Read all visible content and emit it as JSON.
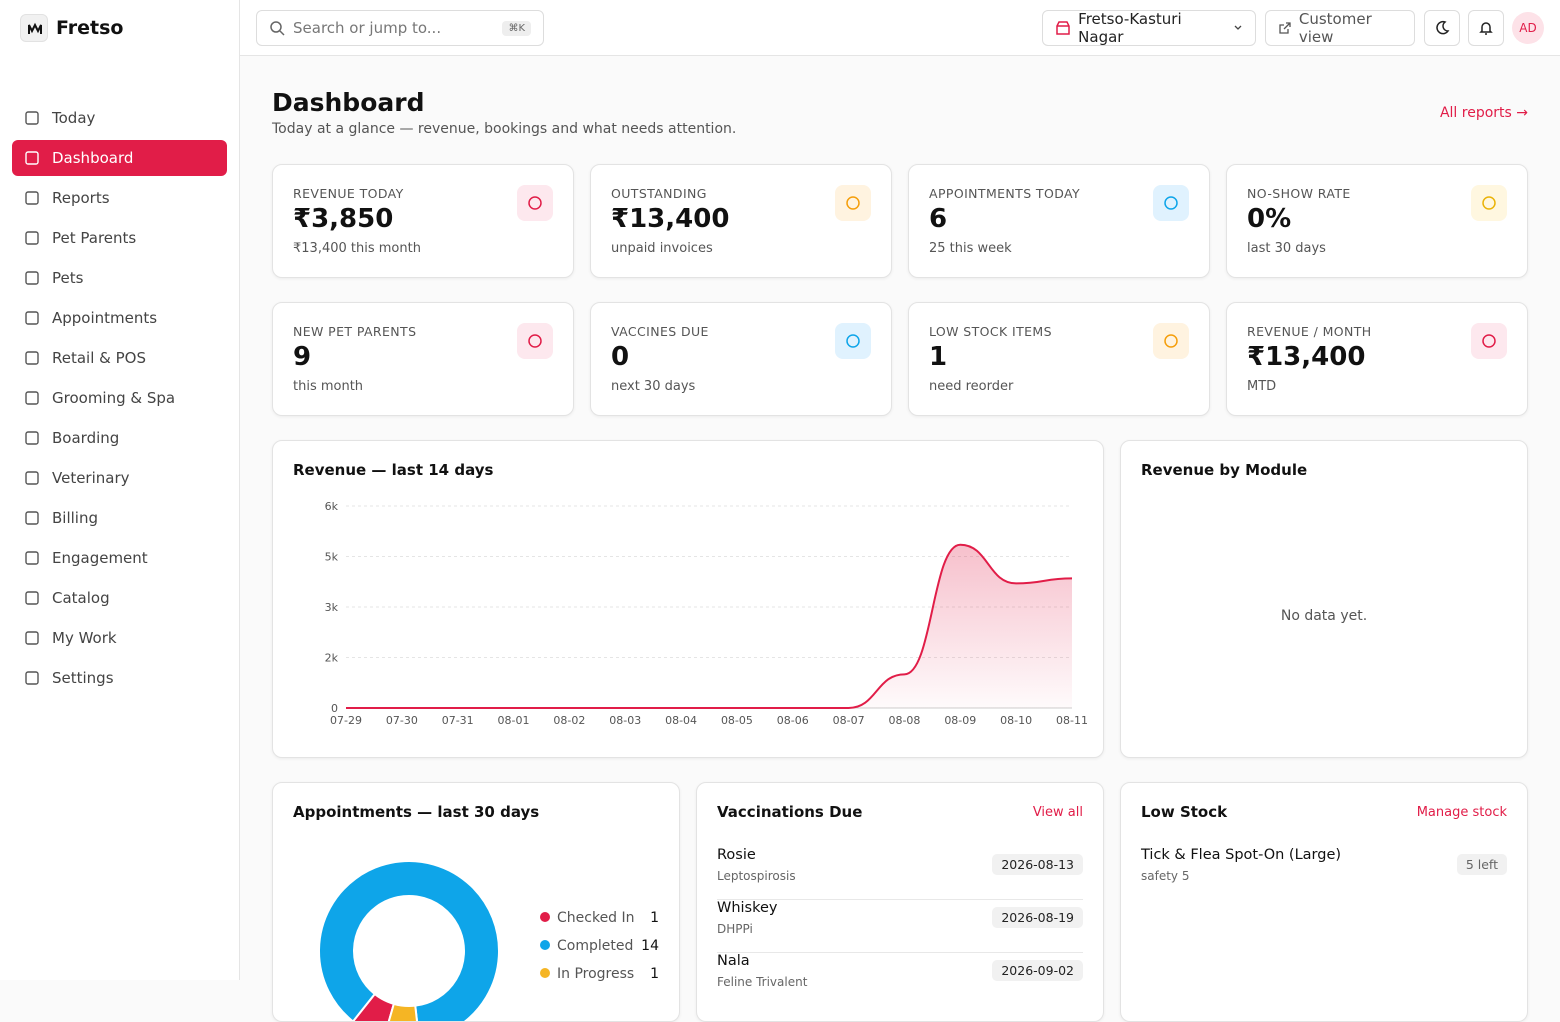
{
  "brand": {
    "name": "Fretso"
  },
  "sidebar": {
    "items": [
      "Today",
      "Dashboard",
      "Reports",
      "Pet Parents",
      "Pets",
      "Appointments",
      "Retail & POS",
      "Grooming & Spa",
      "Boarding",
      "Veterinary",
      "Billing",
      "Engagement",
      "Catalog",
      "My Work",
      "Settings"
    ],
    "active": 1
  },
  "topbar": {
    "search_placeholder": "Search or jump to...",
    "shortcut": "⌘K",
    "location": "Fretso-Kasturi Nagar",
    "customer_view": "Customer view",
    "avatar": "AD"
  },
  "page": {
    "title": "Dashboard",
    "subtitle": "Today at a glance — revenue, bookings and what needs attention.",
    "link": "All reports →"
  },
  "kpis": [
    {
      "label": "REVENUE TODAY",
      "value": "₹3,850",
      "note": "₹13,400 this month"
    },
    {
      "label": "OUTSTANDING",
      "value": "₹13,400",
      "note": "unpaid invoices"
    },
    {
      "label": "APPOINTMENTS TODAY",
      "value": "6",
      "note": "25 this week"
    },
    {
      "label": "NO-SHOW RATE",
      "value": "0%",
      "note": "last 30 days"
    },
    {
      "label": "NEW PET PARENTS",
      "value": "9",
      "note": "this month"
    },
    {
      "label": "VACCINES DUE",
      "value": "0",
      "note": "next 30 days"
    },
    {
      "label": "LOW STOCK ITEMS",
      "value": "1",
      "note": "need reorder"
    },
    {
      "label": "REVENUE / MONTH",
      "value": "₹13,400",
      "note": "MTD"
    }
  ],
  "chart_data": [
    {
      "type": "area",
      "title": "Revenue — last 14 days",
      "color": "#e11d48",
      "categories": [
        "07-29",
        "07-30",
        "07-31",
        "08-01",
        "08-02",
        "08-03",
        "08-04",
        "08-05",
        "08-06",
        "08-07",
        "08-08",
        "08-09",
        "08-10",
        "08-11"
      ],
      "values": [
        0,
        0,
        0,
        0,
        0,
        0,
        0,
        0,
        0,
        0,
        1000,
        4850,
        3700,
        3850
      ],
      "ylim": [
        0,
        6000
      ],
      "yticks": [
        0,
        {
          "value": 1500,
          "label": "2k"
        },
        {
          "value": 3000,
          "label": "3k"
        },
        {
          "value": 4500,
          "label": "5k"
        },
        {
          "value": 6000,
          "label": "6k"
        }
      ],
      "grid": true
    },
    {
      "type": "donut",
      "title": "Appointments — last 30 days",
      "categories": [
        "Checked In",
        "Completed",
        "In Progress"
      ],
      "values": [
        1,
        14,
        1
      ],
      "colors": [
        "#e11d48",
        "#0ea5e9",
        "#f5b524"
      ]
    }
  ],
  "module_panel": {
    "title": "Revenue by Module",
    "empty": "No data yet."
  },
  "vaccinations": {
    "title": "Vaccinations Due",
    "link": "View all",
    "rows": [
      {
        "name": "Rosie",
        "vaccine": "Leptospirosis",
        "date": "2026-08-13"
      },
      {
        "name": "Whiskey",
        "vaccine": "DHPPi",
        "date": "2026-08-19"
      },
      {
        "name": "Nala",
        "vaccine": "Feline Trivalent",
        "date": "2026-09-02"
      }
    ]
  },
  "low_stock": {
    "title": "Low Stock",
    "link": "Manage stock",
    "rows": [
      {
        "name": "Tick & Flea Spot-On (Large)",
        "detail": "safety 5",
        "badge": "5 left"
      }
    ]
  }
}
